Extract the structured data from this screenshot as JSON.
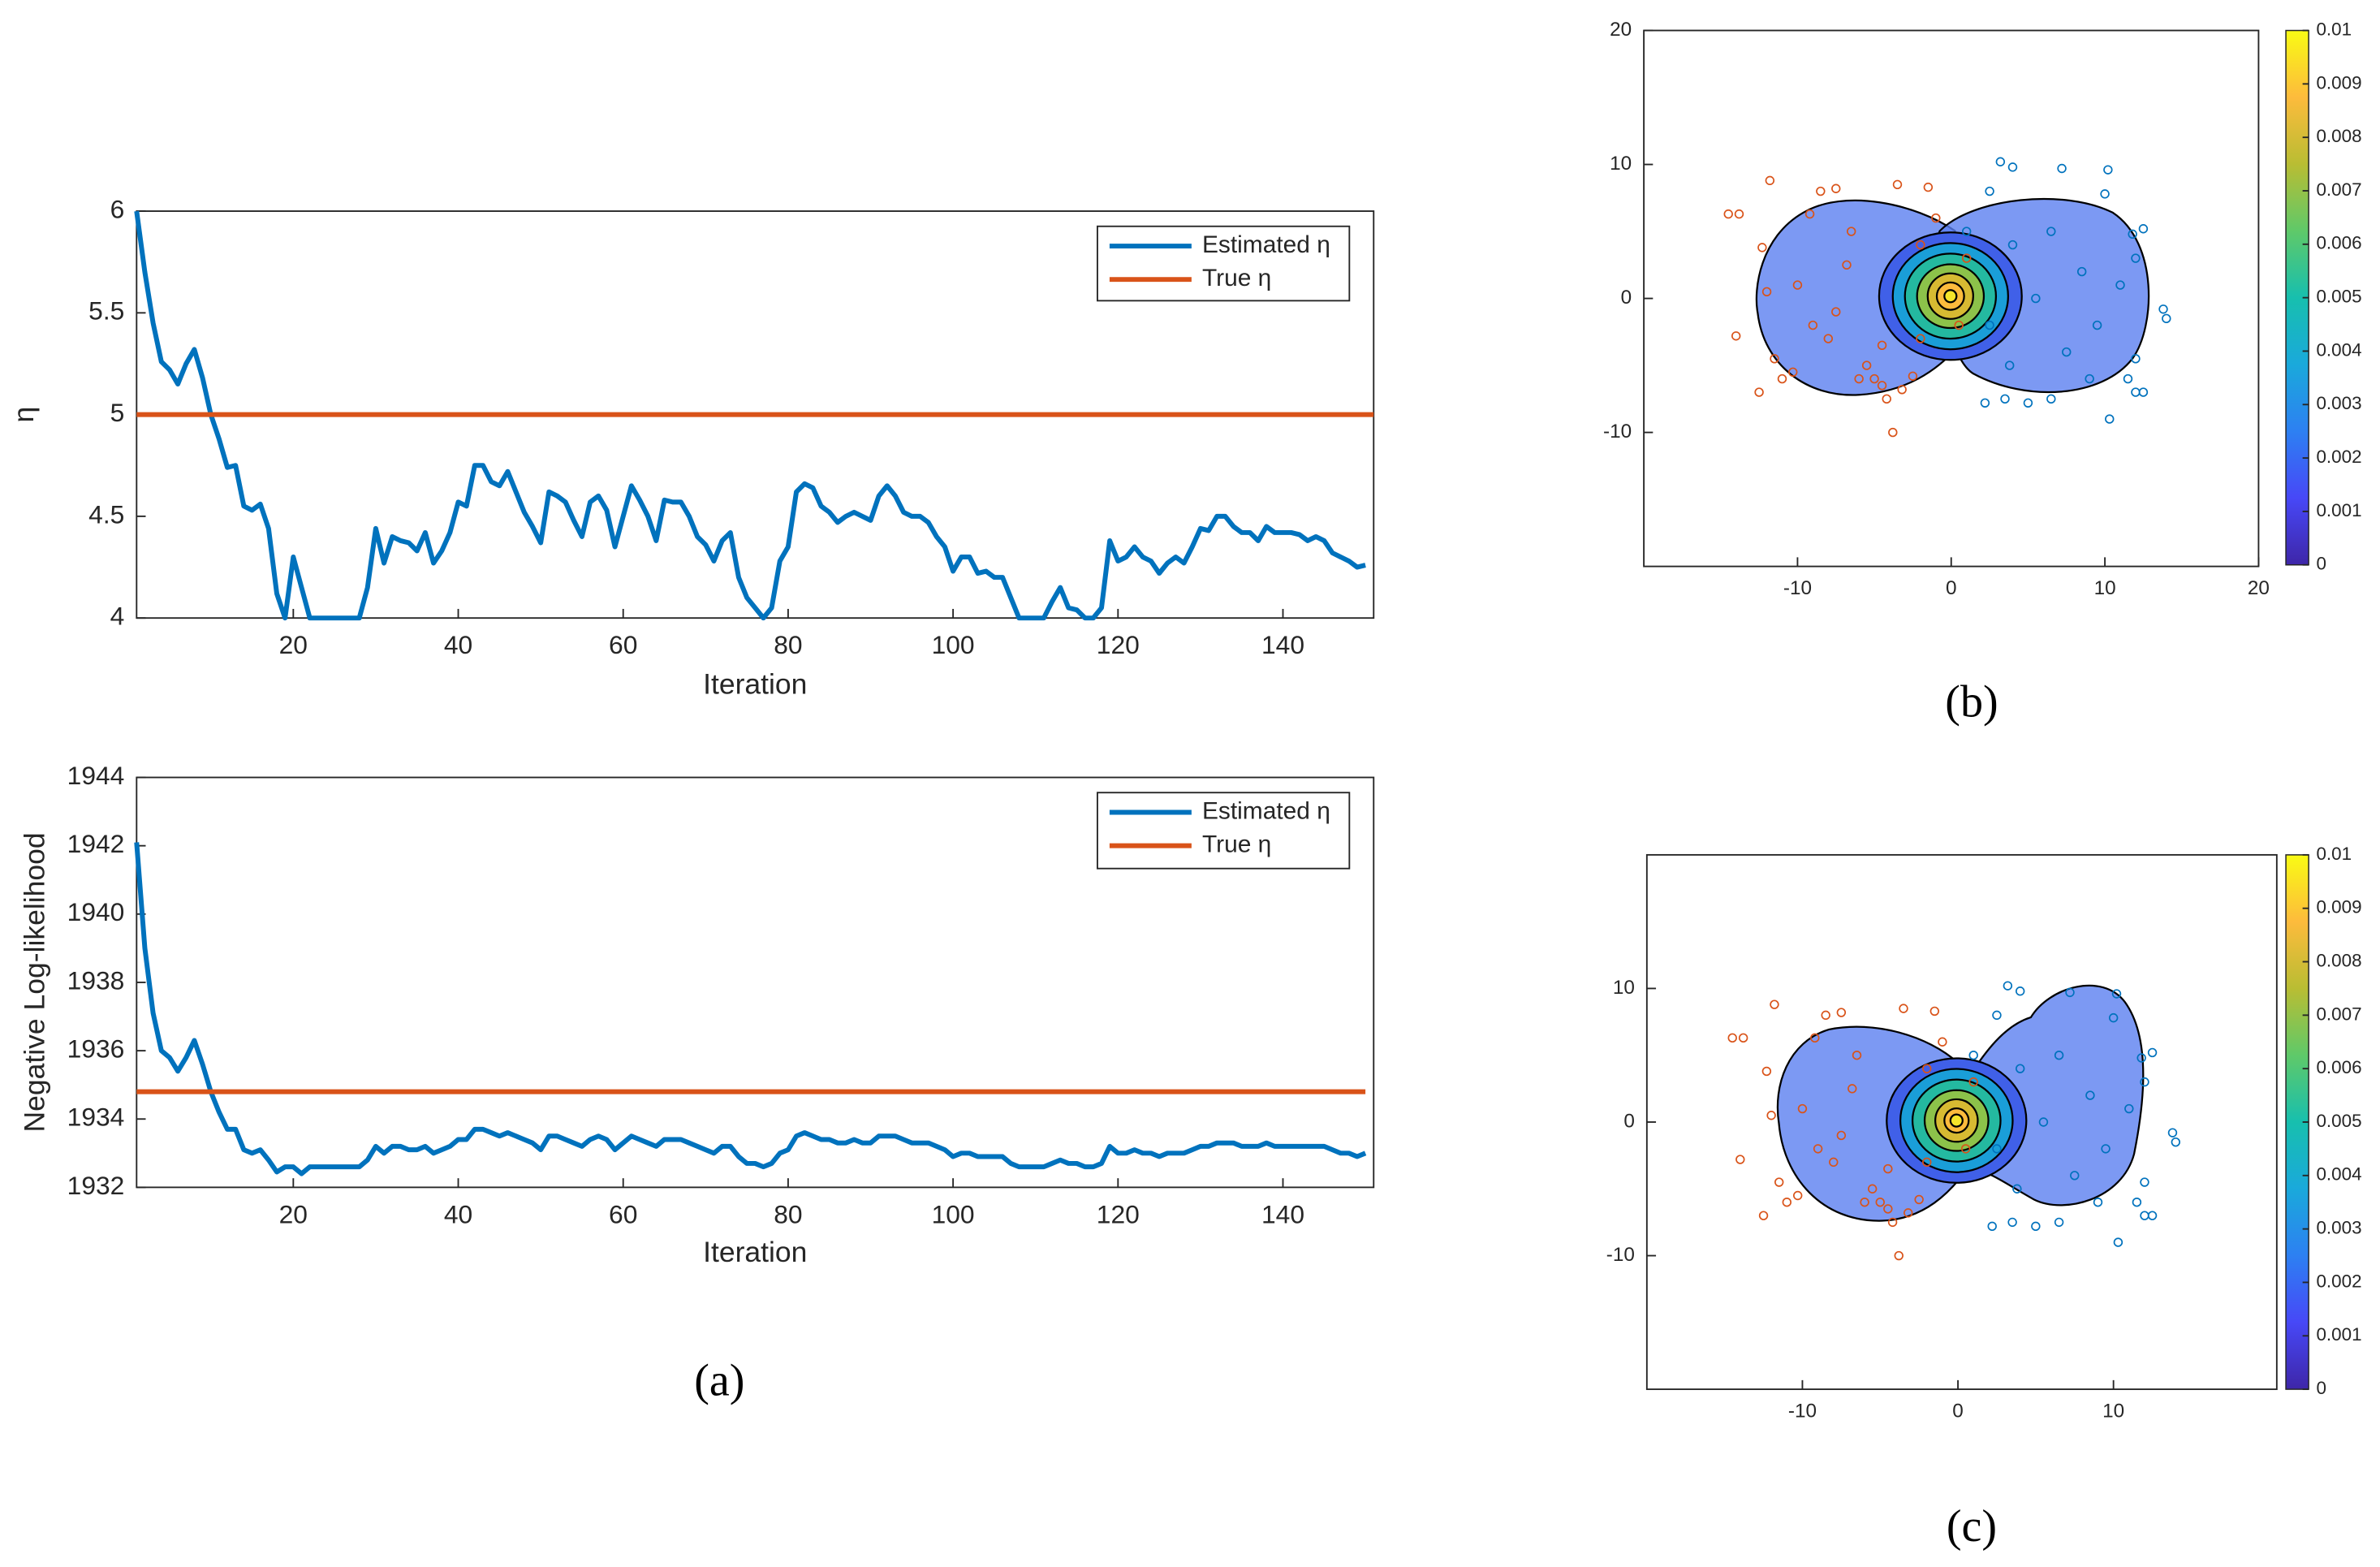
{
  "captions": [
    "(a)",
    "(b)",
    "(c)"
  ],
  "chart_data": [
    {
      "type": "line",
      "xlabel": "Iteration",
      "ylabel": "η",
      "legend": "northeast",
      "xlim": [
        1,
        151
      ],
      "xticks": [
        20,
        40,
        60,
        80,
        100,
        120,
        140
      ],
      "ylim": [
        4,
        6
      ],
      "yticks": [
        4,
        4.5,
        5,
        5.5,
        6
      ],
      "series": [
        {
          "name": "Estimated η",
          "color": "#0072bd",
          "x": [
            1,
            2,
            3,
            4,
            5,
            6,
            7,
            8,
            9,
            10,
            11,
            12,
            13,
            14,
            15,
            16,
            17,
            18,
            19,
            20,
            21,
            22,
            23,
            24,
            25,
            26,
            27,
            28,
            29,
            30,
            31,
            32,
            33,
            34,
            35,
            36,
            37,
            38,
            39,
            40,
            41,
            42,
            43,
            44,
            45,
            46,
            47,
            48,
            49,
            50,
            51,
            52,
            53,
            54,
            55,
            56,
            57,
            58,
            59,
            60,
            61,
            62,
            63,
            64,
            65,
            66,
            67,
            68,
            69,
            70,
            71,
            72,
            73,
            74,
            75,
            76,
            77,
            78,
            79,
            80,
            81,
            82,
            83,
            84,
            85,
            86,
            87,
            88,
            89,
            90,
            91,
            92,
            93,
            94,
            95,
            96,
            97,
            98,
            99,
            100,
            101,
            102,
            103,
            104,
            105,
            106,
            107,
            108,
            109,
            110,
            111,
            112,
            113,
            114,
            115,
            116,
            117,
            118,
            119,
            120,
            121,
            122,
            123,
            124,
            125,
            126,
            127,
            128,
            129,
            130,
            131,
            132,
            133,
            134,
            135,
            136,
            137,
            138,
            139,
            140,
            141,
            142,
            143,
            144,
            145,
            146,
            147,
            148,
            149,
            150
          ],
          "values": [
            6,
            5.7,
            5.45,
            5.26,
            5.22,
            5.15,
            5.25,
            5.32,
            5.18,
            5,
            4.88,
            4.74,
            4.75,
            4.55,
            4.53,
            4.56,
            4.44,
            4.12,
            4,
            4.3,
            4.15,
            4,
            4,
            4,
            4,
            4,
            4,
            4,
            4.15,
            4.44,
            4.27,
            4.4,
            4.38,
            4.37,
            4.33,
            4.42,
            4.27,
            4.33,
            4.42,
            4.57,
            4.55,
            4.75,
            4.75,
            4.67,
            4.65,
            4.72,
            4.62,
            4.52,
            4.45,
            4.37,
            4.62,
            4.6,
            4.57,
            4.48,
            4.4,
            4.57,
            4.6,
            4.53,
            4.35,
            4.5,
            4.65,
            4.58,
            4.5,
            4.38,
            4.58,
            4.57,
            4.57,
            4.5,
            4.4,
            4.36,
            4.28,
            4.38,
            4.42,
            4.2,
            4.1,
            4.05,
            4,
            4.05,
            4.28,
            4.35,
            4.62,
            4.66,
            4.64,
            4.55,
            4.52,
            4.47,
            4.5,
            4.52,
            4.5,
            4.48,
            4.6,
            4.65,
            4.6,
            4.52,
            4.5,
            4.5,
            4.47,
            4.4,
            4.35,
            4.23,
            4.3,
            4.3,
            4.22,
            4.23,
            4.2,
            4.2,
            4.1,
            4,
            4,
            4,
            4,
            4.08,
            4.15,
            4.05,
            4.04,
            4,
            4,
            4.05,
            4.38,
            4.28,
            4.3,
            4.35,
            4.3,
            4.28,
            4.22,
            4.27,
            4.3,
            4.27,
            4.35,
            4.44,
            4.43,
            4.5,
            4.5,
            4.45,
            4.42,
            4.42,
            4.38,
            4.45,
            4.42,
            4.42,
            4.42,
            4.41,
            4.38,
            4.4,
            4.38,
            4.32,
            4.3,
            4.28,
            4.25,
            4.26
          ]
        },
        {
          "name": "True η",
          "color": "#d95319",
          "x": [
            1,
            151
          ],
          "values": [
            5,
            5
          ]
        }
      ]
    },
    {
      "type": "line",
      "xlabel": "Iteration",
      "ylabel": "Negative Log-likelihood",
      "legend": "northeast",
      "xlim": [
        1,
        151
      ],
      "xticks": [
        20,
        40,
        60,
        80,
        100,
        120,
        140
      ],
      "ylim": [
        1932,
        1944
      ],
      "yticks": [
        1932,
        1934,
        1936,
        1938,
        1940,
        1942,
        1944
      ],
      "series": [
        {
          "name": "Estimated η",
          "color": "#0072bd",
          "x": [
            1,
            2,
            3,
            4,
            5,
            6,
            7,
            8,
            9,
            10,
            11,
            12,
            13,
            14,
            15,
            16,
            17,
            18,
            19,
            20,
            21,
            22,
            23,
            24,
            25,
            26,
            27,
            28,
            29,
            30,
            31,
            32,
            33,
            34,
            35,
            36,
            37,
            38,
            39,
            40,
            41,
            42,
            43,
            44,
            45,
            46,
            47,
            48,
            49,
            50,
            51,
            52,
            53,
            54,
            55,
            56,
            57,
            58,
            59,
            60,
            61,
            62,
            63,
            64,
            65,
            66,
            67,
            68,
            69,
            70,
            71,
            72,
            73,
            74,
            75,
            76,
            77,
            78,
            79,
            80,
            81,
            82,
            83,
            84,
            85,
            86,
            87,
            88,
            89,
            90,
            91,
            92,
            93,
            94,
            95,
            96,
            97,
            98,
            99,
            100,
            101,
            102,
            103,
            104,
            105,
            106,
            107,
            108,
            109,
            110,
            111,
            112,
            113,
            114,
            115,
            116,
            117,
            118,
            119,
            120,
            121,
            122,
            123,
            124,
            125,
            126,
            127,
            128,
            129,
            130,
            131,
            132,
            133,
            134,
            135,
            136,
            137,
            138,
            139,
            140,
            141,
            142,
            143,
            144,
            145,
            146,
            147,
            148,
            149,
            150
          ],
          "values": [
            1942.1,
            1939,
            1937.1,
            1936,
            1935.8,
            1935.4,
            1935.8,
            1936.3,
            1935.6,
            1934.8,
            1934.2,
            1933.7,
            1933.7,
            1933.1,
            1933,
            1933.1,
            1932.8,
            1932.45,
            1932.6,
            1932.6,
            1932.4,
            1932.6,
            1932.6,
            1932.6,
            1932.6,
            1932.6,
            1932.6,
            1932.6,
            1932.8,
            1933.2,
            1933,
            1933.2,
            1933.2,
            1933.1,
            1933.1,
            1933.2,
            1933,
            1933.1,
            1933.2,
            1933.4,
            1933.4,
            1933.7,
            1933.7,
            1933.6,
            1933.5,
            1933.6,
            1933.5,
            1933.4,
            1933.3,
            1933.1,
            1933.5,
            1933.5,
            1933.4,
            1933.3,
            1933.2,
            1933.4,
            1933.5,
            1933.4,
            1933.1,
            1933.3,
            1933.5,
            1933.4,
            1933.3,
            1933.2,
            1933.4,
            1933.4,
            1933.4,
            1933.3,
            1933.2,
            1933.1,
            1933,
            1933.2,
            1933.2,
            1932.9,
            1932.7,
            1932.7,
            1932.6,
            1932.7,
            1933,
            1933.1,
            1933.5,
            1933.6,
            1933.5,
            1933.4,
            1933.4,
            1933.3,
            1933.3,
            1933.4,
            1933.3,
            1933.3,
            1933.5,
            1933.5,
            1933.5,
            1933.4,
            1933.3,
            1933.3,
            1933.3,
            1933.2,
            1933.1,
            1932.9,
            1933,
            1933,
            1932.9,
            1932.9,
            1932.9,
            1932.9,
            1932.7,
            1932.6,
            1932.6,
            1932.6,
            1932.6,
            1932.7,
            1932.8,
            1932.7,
            1932.7,
            1932.6,
            1932.6,
            1932.7,
            1933.2,
            1933,
            1933,
            1933.1,
            1933,
            1933,
            1932.9,
            1933,
            1933,
            1933,
            1933.1,
            1933.2,
            1933.2,
            1933.3,
            1933.3,
            1933.3,
            1933.2,
            1933.2,
            1933.2,
            1933.3,
            1933.2,
            1933.2,
            1933.2,
            1933.2,
            1933.2,
            1933.2,
            1933.2,
            1933.1,
            1933,
            1933,
            1932.9,
            1933
          ]
        },
        {
          "name": "True η",
          "color": "#d95319",
          "x": [
            1,
            150
          ],
          "values": [
            1934.8,
            1934.8
          ]
        }
      ]
    },
    {
      "type": "scatter",
      "xlim": [
        -20,
        20
      ],
      "xticks": [
        -10,
        0,
        10,
        20
      ],
      "ylim": [
        -20,
        20
      ],
      "yticks": [
        -10,
        0,
        10,
        20
      ],
      "colorbar": {
        "lim": [
          0,
          0.01
        ],
        "ticks": [
          0,
          0.001,
          0.002,
          0.003,
          0.004,
          0.005,
          0.006,
          0.007,
          0.008,
          0.009,
          0.01
        ]
      },
      "series": [
        {
          "color": "#d95319",
          "x": [
            -14.5,
            -13.8,
            -12.3,
            -14,
            -12.5,
            -11.5,
            -11,
            -10.3,
            -11.8,
            -9.2,
            -8.5,
            -7.5,
            -6.5,
            -6,
            -5.5,
            -4.5,
            -3.8,
            -3.2,
            -2.5,
            -4.2,
            -5,
            -3.5,
            -1.5,
            -2,
            -9,
            -10,
            -8,
            -6.8,
            -4.5,
            -2,
            -1,
            1,
            0.5,
            -12,
            -7.5
          ],
          "values": [
            6.3,
            6.3,
            3.8,
            -2.8,
            -7,
            -4.5,
            -6,
            -5.5,
            8.8,
            6.3,
            8,
            8.2,
            5,
            -6,
            -5,
            -6.5,
            -10,
            -6.8,
            -5.8,
            -7.5,
            -6,
            8.5,
            8.3,
            4,
            -2,
            1,
            -3,
            2.5,
            -3.5,
            -3,
            6,
            3,
            -2,
            0.5,
            -1
          ]
        },
        {
          "color": "#0072bd",
          "x": [
            3.2,
            4,
            2.5,
            10.2,
            7.2,
            10,
            12.5,
            11.8,
            12,
            13.8,
            14,
            12,
            11.5,
            12,
            12.5,
            10.3,
            9,
            6.5,
            5,
            3.5,
            2.2,
            3.8,
            7.5,
            5.5,
            8.5,
            6.5,
            4,
            9.5,
            2.5,
            1,
            11
          ],
          "values": [
            10.2,
            9.8,
            8,
            9.6,
            9.7,
            7.8,
            5.2,
            4.8,
            3,
            -0.8,
            -1.5,
            -4.5,
            -6,
            -7,
            -7,
            -9,
            -6,
            -7.5,
            -7.8,
            -7.5,
            -7.8,
            -5,
            -4,
            0,
            2,
            5,
            4,
            -2,
            -2,
            5,
            1
          ]
        }
      ]
    },
    {
      "type": "scatter",
      "xlim": [
        -20,
        20.5
      ],
      "xticks": [
        -10,
        0,
        10
      ],
      "ylim": [
        -20,
        20
      ],
      "yticks": [
        -10,
        0,
        10
      ],
      "colorbar": {
        "lim": [
          0,
          0.01
        ],
        "ticks": [
          0,
          0.001,
          0.002,
          0.003,
          0.004,
          0.005,
          0.006,
          0.007,
          0.008,
          0.009,
          0.01
        ]
      },
      "series": [
        {
          "color": "#d95319",
          "x": [
            -14.5,
            -13.8,
            -12.3,
            -14,
            -12.5,
            -11.5,
            -11,
            -10.3,
            -11.8,
            -9.2,
            -8.5,
            -7.5,
            -6.5,
            -6,
            -5.5,
            -4.5,
            -3.8,
            -3.2,
            -2.5,
            -4.2,
            -5,
            -3.5,
            -1.5,
            -2,
            -9,
            -10,
            -8,
            -6.8,
            -4.5,
            -2,
            -1,
            1,
            0.5,
            -12,
            -7.5
          ],
          "values": [
            6.3,
            6.3,
            3.8,
            -2.8,
            -7,
            -4.5,
            -6,
            -5.5,
            8.8,
            6.3,
            8,
            8.2,
            5,
            -6,
            -5,
            -6.5,
            -10,
            -6.8,
            -5.8,
            -7.5,
            -6,
            8.5,
            8.3,
            4,
            -2,
            1,
            -3,
            2.5,
            -3.5,
            -3,
            6,
            3,
            -2,
            0.5,
            -1
          ]
        },
        {
          "color": "#0072bd",
          "x": [
            3.2,
            4,
            2.5,
            10.2,
            7.2,
            10,
            12.5,
            11.8,
            12,
            13.8,
            14,
            12,
            11.5,
            12,
            12.5,
            10.3,
            9,
            6.5,
            5,
            3.5,
            2.2,
            3.8,
            7.5,
            5.5,
            8.5,
            6.5,
            4,
            9.5,
            2.5,
            1,
            11
          ],
          "values": [
            10.2,
            9.8,
            8,
            9.6,
            9.7,
            7.8,
            5.2,
            4.8,
            3,
            -0.8,
            -1.5,
            -4.5,
            -6,
            -7,
            -7,
            -9,
            -6,
            -7.5,
            -7.8,
            -7.5,
            -7.8,
            -5,
            -4,
            0,
            2,
            5,
            4,
            -2,
            -2,
            5,
            1
          ]
        }
      ]
    }
  ]
}
